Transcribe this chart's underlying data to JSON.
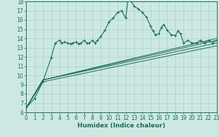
{
  "xlabel": "Humidex (Indice chaleur)",
  "xlim": [
    0,
    23
  ],
  "ylim": [
    6,
    18
  ],
  "xticks": [
    0,
    1,
    2,
    3,
    4,
    5,
    6,
    7,
    8,
    9,
    10,
    11,
    12,
    13,
    14,
    15,
    16,
    17,
    18,
    19,
    20,
    21,
    22,
    23
  ],
  "yticks": [
    6,
    7,
    8,
    9,
    10,
    11,
    12,
    13,
    14,
    15,
    16,
    17,
    18
  ],
  "bg_color": "#cde8e2",
  "line_color": "#1a6b5a",
  "grid_color": "#a8cfc8",
  "main_x": [
    0,
    1,
    2,
    3,
    3.5,
    4,
    4.3,
    4.6,
    5,
    5.3,
    5.6,
    6,
    6.3,
    6.6,
    7,
    7.3,
    7.6,
    8,
    8.3,
    8.6,
    9,
    9.5,
    10,
    10.5,
    11,
    11.5,
    12,
    12.3,
    12.6,
    13,
    13.5,
    14,
    14.5,
    15,
    15.3,
    15.6,
    16,
    16.3,
    16.6,
    17,
    17.5,
    18,
    18.3,
    18.6,
    19,
    19.5,
    20,
    20.5,
    21,
    21.5,
    22,
    22.5,
    23
  ],
  "main_y": [
    6.5,
    7.5,
    9.3,
    11.9,
    13.5,
    13.8,
    13.5,
    13.6,
    13.5,
    13.4,
    13.5,
    13.6,
    13.4,
    13.5,
    13.8,
    13.5,
    13.5,
    13.8,
    13.5,
    13.8,
    14.2,
    14.9,
    15.8,
    16.2,
    16.8,
    17.0,
    16.2,
    18.3,
    18.1,
    17.5,
    17.2,
    16.8,
    16.3,
    15.3,
    14.8,
    14.4,
    14.5,
    15.2,
    15.5,
    14.9,
    14.4,
    14.3,
    14.8,
    14.5,
    13.5,
    13.8,
    13.5,
    13.5,
    13.8,
    13.5,
    13.8,
    13.5,
    13.8
  ],
  "line2_x": [
    0,
    2,
    23
  ],
  "line2_y": [
    6.5,
    9.5,
    14.0
  ],
  "line3_x": [
    0,
    2,
    23
  ],
  "line3_y": [
    6.5,
    9.5,
    13.5
  ],
  "line4_x": [
    0,
    2,
    23
  ],
  "line4_y": [
    6.5,
    9.3,
    13.2
  ],
  "line5_x": [
    0,
    2,
    23
  ],
  "line5_y": [
    6.5,
    9.5,
    13.8
  ],
  "tick_fontsize": 5.5,
  "label_fontsize": 6.5
}
